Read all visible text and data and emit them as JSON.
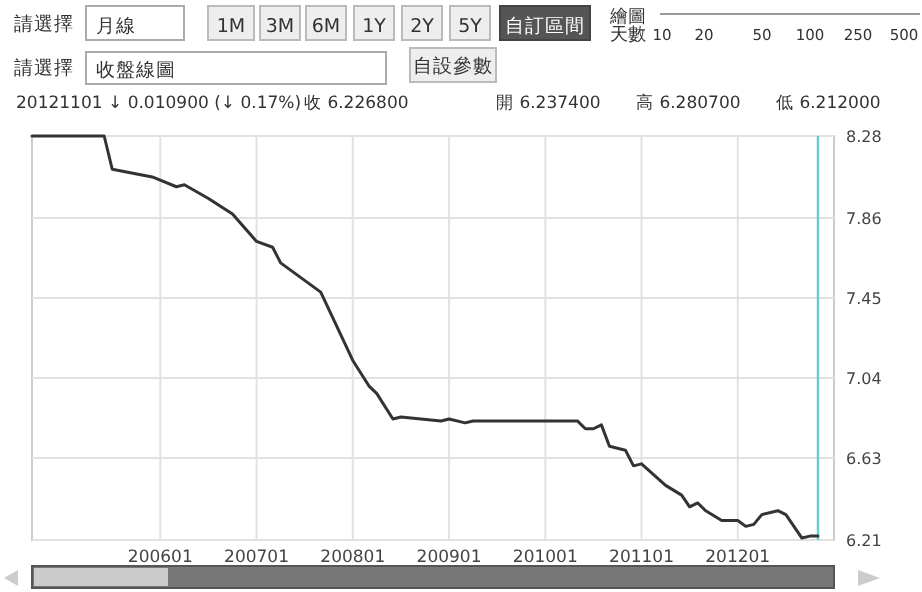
{
  "chart_data": {
    "type": "line",
    "annotations": [
      "請選擇",
      "月線",
      "1M",
      "3M",
      "6M",
      "1Y",
      "2Y",
      "5Y",
      "自訂區間",
      "繪圖天數",
      "10",
      "20",
      "50",
      "100",
      "250",
      "500",
      "請選擇",
      "收盤線圖",
      "自設參數",
      "20121101",
      "↓ 0.010900 (↓ 0.17%)",
      "收 6.226800",
      "開 6.237400",
      "高 6.280700",
      "低 6.212000"
    ],
    "x": [
      "2004-09",
      "2005-06",
      "2005-07",
      "2005-12",
      "2006-03",
      "2006-04",
      "2006-07",
      "2006-10",
      "2007-01",
      "2007-03",
      "2007-04",
      "2007-09",
      "2008-01",
      "2008-03",
      "2008-04",
      "2008-06",
      "2008-07",
      "2008-12",
      "2009-01",
      "2009-03",
      "2009-04",
      "2010-05",
      "2010-06",
      "2010-07",
      "2010-08",
      "2010-09",
      "2010-11",
      "2010-12",
      "2011-01",
      "2011-04",
      "2011-06",
      "2011-07",
      "2011-08",
      "2011-09",
      "2011-11",
      "2012-01",
      "2012-02",
      "2012-03",
      "2012-04",
      "2012-06",
      "2012-07",
      "2012-08",
      "2012-09",
      "2012-10",
      "2012-11"
    ],
    "series": [
      {
        "color": "#333333",
        "values": [
          8.28,
          8.28,
          8.11,
          8.07,
          8.02,
          8.03,
          7.96,
          7.88,
          7.74,
          7.71,
          7.63,
          7.48,
          7.13,
          7.0,
          6.96,
          6.83,
          6.84,
          6.82,
          6.83,
          6.81,
          6.82,
          6.82,
          6.78,
          6.78,
          6.8,
          6.69,
          6.67,
          6.59,
          6.6,
          6.49,
          6.44,
          6.38,
          6.4,
          6.36,
          6.31,
          6.31,
          6.28,
          6.29,
          6.34,
          6.36,
          6.34,
          6.28,
          6.22,
          6.23,
          6.23
        ]
      }
    ],
    "xlim": [
      "2004-09",
      "2013-01"
    ],
    "xticks": [
      {
        "value": "2006-01",
        "label": "200601"
      },
      {
        "value": "2007-01",
        "label": "200701"
      },
      {
        "value": "2008-01",
        "label": "200801"
      },
      {
        "value": "2009-01",
        "label": "200901"
      },
      {
        "value": "2010-01",
        "label": "201001"
      },
      {
        "value": "2011-01",
        "label": "201101"
      },
      {
        "value": "2012-01",
        "label": "201201"
      }
    ],
    "ylim": [
      6.21,
      8.28
    ],
    "yticks": [
      6.21,
      6.63,
      7.04,
      7.45,
      7.86,
      8.28
    ],
    "ref_lines": [
      {
        "axis": "x",
        "value": "2012-11",
        "color": "#66cccc"
      }
    ],
    "grid": true,
    "marker": "none",
    "line_style": "solid"
  }
}
